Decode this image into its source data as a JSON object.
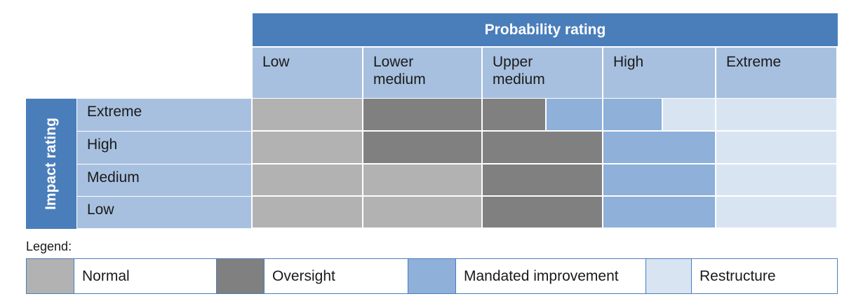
{
  "header": {
    "probability_title": "Probability rating",
    "impact_title": "Impact rating"
  },
  "probability_levels": [
    {
      "lines": [
        "Low"
      ]
    },
    {
      "lines": [
        "Lower",
        "medium"
      ]
    },
    {
      "lines": [
        "Upper",
        "medium"
      ]
    },
    {
      "lines": [
        "High"
      ]
    },
    {
      "lines": [
        "Extreme"
      ]
    }
  ],
  "impact_levels": [
    "Extreme",
    "High",
    "Medium",
    "Low"
  ],
  "colors": {
    "normal": "#b2b2b2",
    "oversight": "#808080",
    "mandated": "#8eb0d9",
    "restructure": "#d8e4f2",
    "header_blue": "#4a7ebb",
    "label_blue": "#a7c0df"
  },
  "matrix": [
    [
      "normal",
      "oversight",
      "oversight|mandated",
      "mandated|restructure",
      "restructure"
    ],
    [
      "normal",
      "oversight",
      "oversight",
      "mandated",
      "restructure"
    ],
    [
      "normal",
      "normal",
      "oversight",
      "mandated",
      "restructure"
    ],
    [
      "normal",
      "normal",
      "oversight",
      "mandated",
      "restructure"
    ]
  ],
  "legend": {
    "label": "Legend:",
    "items": [
      {
        "key": "normal",
        "label": "Normal"
      },
      {
        "key": "oversight",
        "label": "Oversight"
      },
      {
        "key": "mandated",
        "label": "Mandated improvement"
      },
      {
        "key": "restructure",
        "label": "Restructure"
      }
    ]
  }
}
